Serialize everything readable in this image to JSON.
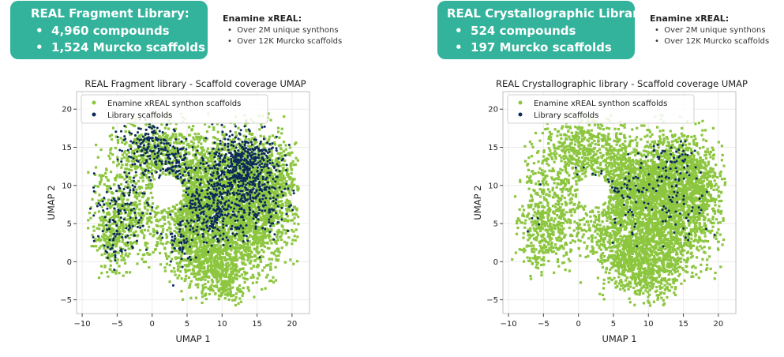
{
  "panels": [
    {
      "callout": {
        "title": "REAL Fragment Library:",
        "bullets": [
          "4,960 compounds",
          "1,524 Murcko scaffolds"
        ]
      },
      "note": {
        "title": "Enamine xREAL:",
        "bullets": [
          "Over 2M unique synthons",
          "Over 12K Murcko scaffolds"
        ]
      }
    },
    {
      "callout": {
        "title": "REAL Crystallographic Library:",
        "bullets": [
          "524 compounds",
          "197 Murcko scaffolds"
        ]
      },
      "note": {
        "title": "Enamine xREAL:",
        "bullets": [
          "Over 2M unique synthons",
          "Over 12K Murcko scaffolds"
        ]
      }
    }
  ],
  "colors": {
    "callout_bg": "#33b39b",
    "background_series": "#8cc63f",
    "library_series": "#0b2b5a",
    "grid": "#ececec",
    "axes": "#cccccc"
  },
  "chart_data": [
    {
      "type": "scatter",
      "title": "REAL Fragment library - Scaffold coverage UMAP",
      "xlabel": "UMAP 1",
      "ylabel": "UMAP 2",
      "xlim": [
        -10.8,
        22.5
      ],
      "ylim": [
        -6.8,
        22.3
      ],
      "xticks": [
        -10,
        -5,
        0,
        5,
        10,
        15,
        20
      ],
      "yticks": [
        -5,
        0,
        5,
        10,
        15,
        20
      ],
      "xtick_labels": [
        "−10",
        "−5",
        "0",
        "5",
        "10",
        "15",
        "20"
      ],
      "ytick_labels": [
        "−5",
        "0",
        "5",
        "10",
        "15",
        "20"
      ],
      "grid": true,
      "legend_position": "top-left",
      "series": [
        {
          "name": "Enamine xREAL synthon scaffolds",
          "color": "#8cc63f",
          "role": "background",
          "approx_points": 12000
        },
        {
          "name": "Library scaffolds",
          "color": "#0b2b5a",
          "role": "library",
          "approx_points": 1524,
          "density": "high"
        }
      ]
    },
    {
      "type": "scatter",
      "title": "REAL Crystallographic library - Scaffold coverage UMAP",
      "xlabel": "UMAP 1",
      "ylabel": "UMAP 2",
      "xlim": [
        -10.8,
        22.5
      ],
      "ylim": [
        -6.8,
        22.3
      ],
      "xticks": [
        -10,
        -5,
        0,
        5,
        10,
        15,
        20
      ],
      "yticks": [
        -5,
        0,
        5,
        10,
        15,
        20
      ],
      "xtick_labels": [
        "−10",
        "−5",
        "0",
        "5",
        "10",
        "15",
        "20"
      ],
      "ytick_labels": [
        "−5",
        "0",
        "5",
        "10",
        "15",
        "20"
      ],
      "grid": true,
      "legend_position": "top-left",
      "series": [
        {
          "name": "Enamine xREAL synthon scaffolds",
          "color": "#8cc63f",
          "role": "background",
          "approx_points": 12000
        },
        {
          "name": "Library scaffolds",
          "color": "#0b2b5a",
          "role": "library",
          "approx_points": 197,
          "density": "low"
        }
      ]
    }
  ]
}
